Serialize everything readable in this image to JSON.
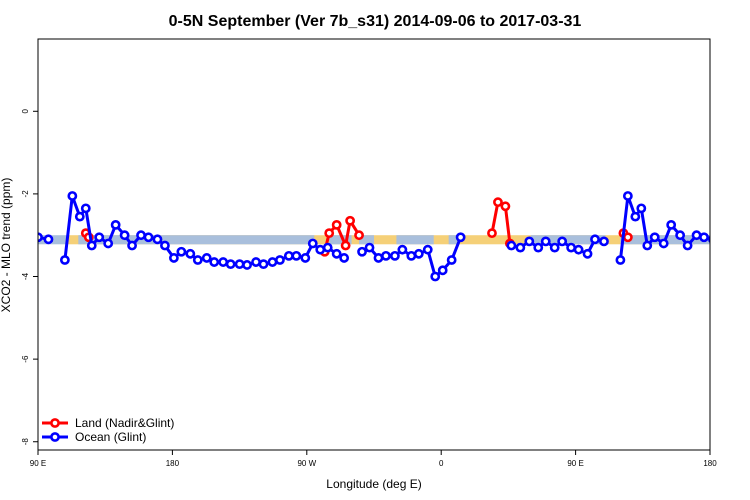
{
  "chart_data": {
    "type": "line",
    "title": "0-5N September (Ver 7b_s31)   2014-09-06 to 2017-03-31",
    "xlabel": "Longitude (deg E)",
    "ylabel": "XCO2 - MLO trend (ppm)",
    "xlim": [
      90,
      540
    ],
    "ylim": [
      -8.2,
      1.75
    ],
    "x_ticks": [
      {
        "value": 90,
        "label": "90 E"
      },
      {
        "value": 180,
        "label": "180"
      },
      {
        "value": 270,
        "label": "90 W"
      },
      {
        "value": 360,
        "label": "0"
      },
      {
        "value": 450,
        "label": "90 E"
      },
      {
        "value": 540,
        "label": "180"
      }
    ],
    "y_ticks": [
      {
        "value": 0,
        "label": "0"
      },
      {
        "value": -2,
        "label": "-2"
      },
      {
        "value": -4,
        "label": "-4"
      },
      {
        "value": -6,
        "label": "-6"
      },
      {
        "value": -8,
        "label": "-8"
      }
    ],
    "bands": [
      {
        "color": "#f5d078",
        "y_low": -3.22,
        "y_high": -3.0,
        "x_from": 110,
        "x_to": 530
      },
      {
        "color": "#a9bfdc",
        "y_low": -3.22,
        "y_high": -3.0,
        "segments": [
          [
            90,
            110
          ],
          [
            117,
            275
          ],
          [
            285,
            300
          ],
          [
            305,
            315
          ],
          [
            330,
            355
          ],
          [
            365,
            372
          ],
          [
            420,
            470
          ],
          [
            480,
            545
          ]
        ]
      }
    ],
    "series": [
      {
        "name": "Land (Nadir&Glint)",
        "color": "#ff0000",
        "segments": [
          [
            [
              122,
              -2.95
            ],
            [
              124,
              -3.05
            ]
          ],
          [
            [
              282,
              -3.4
            ],
            [
              285,
              -2.95
            ],
            [
              290,
              -2.75
            ],
            [
              296,
              -3.25
            ],
            [
              299,
              -2.65
            ],
            [
              305,
              -3.0
            ]
          ],
          [
            [
              394,
              -2.95
            ],
            [
              398,
              -2.2
            ],
            [
              403,
              -2.3
            ],
            [
              406,
              -3.2
            ]
          ],
          [
            [
              482,
              -2.95
            ],
            [
              485,
              -3.05
            ]
          ]
        ]
      },
      {
        "name": "Ocean (Glint)",
        "color": "#0000ff",
        "segments": [
          [
            [
              90,
              -3.05
            ],
            [
              97,
              -3.1
            ]
          ],
          [
            [
              108,
              -3.6
            ],
            [
              113,
              -2.05
            ],
            [
              118,
              -2.55
            ],
            [
              122,
              -2.35
            ],
            [
              126,
              -3.25
            ],
            [
              131,
              -3.05
            ],
            [
              137,
              -3.2
            ],
            [
              142,
              -2.75
            ],
            [
              148,
              -3.0
            ],
            [
              153,
              -3.25
            ],
            [
              159,
              -3.0
            ],
            [
              164,
              -3.05
            ],
            [
              170,
              -3.1
            ],
            [
              175,
              -3.25
            ],
            [
              181,
              -3.55
            ],
            [
              186,
              -3.4
            ],
            [
              192,
              -3.45
            ],
            [
              197,
              -3.6
            ],
            [
              203,
              -3.55
            ],
            [
              208,
              -3.65
            ],
            [
              214,
              -3.65
            ],
            [
              219,
              -3.7
            ],
            [
              225,
              -3.7
            ],
            [
              230,
              -3.72
            ],
            [
              236,
              -3.65
            ],
            [
              241,
              -3.7
            ],
            [
              247,
              -3.65
            ],
            [
              252,
              -3.6
            ],
            [
              258,
              -3.5
            ],
            [
              263,
              -3.5
            ],
            [
              269,
              -3.55
            ],
            [
              274,
              -3.2
            ],
            [
              279,
              -3.35
            ],
            [
              284,
              -3.3
            ],
            [
              290,
              -3.45
            ],
            [
              295,
              -3.55
            ]
          ],
          [
            [
              307,
              -3.4
            ],
            [
              312,
              -3.3
            ],
            [
              318,
              -3.55
            ],
            [
              323,
              -3.5
            ],
            [
              329,
              -3.5
            ],
            [
              334,
              -3.35
            ],
            [
              340,
              -3.5
            ],
            [
              345,
              -3.45
            ],
            [
              351,
              -3.35
            ],
            [
              356,
              -4.0
            ],
            [
              361,
              -3.85
            ],
            [
              367,
              -3.6
            ],
            [
              373,
              -3.05
            ]
          ],
          [
            [
              407,
              -3.25
            ],
            [
              413,
              -3.3
            ],
            [
              419,
              -3.15
            ],
            [
              425,
              -3.3
            ],
            [
              430,
              -3.15
            ],
            [
              436,
              -3.3
            ],
            [
              441,
              -3.15
            ],
            [
              447,
              -3.3
            ],
            [
              452,
              -3.35
            ],
            [
              458,
              -3.45
            ],
            [
              463,
              -3.1
            ],
            [
              469,
              -3.15
            ]
          ],
          [
            [
              480,
              -3.6
            ],
            [
              485,
              -2.05
            ],
            [
              490,
              -2.55
            ],
            [
              494,
              -2.35
            ],
            [
              498,
              -3.25
            ],
            [
              503,
              -3.05
            ],
            [
              509,
              -3.2
            ],
            [
              514,
              -2.75
            ],
            [
              520,
              -3.0
            ],
            [
              525,
              -3.25
            ],
            [
              531,
              -3.0
            ],
            [
              536,
              -3.05
            ],
            [
              542,
              -3.1
            ],
            [
              547,
              -3.25
            ],
            [
              553,
              -3.55
            ]
          ]
        ]
      }
    ],
    "legend_position": "bottom-left",
    "grid": false
  }
}
